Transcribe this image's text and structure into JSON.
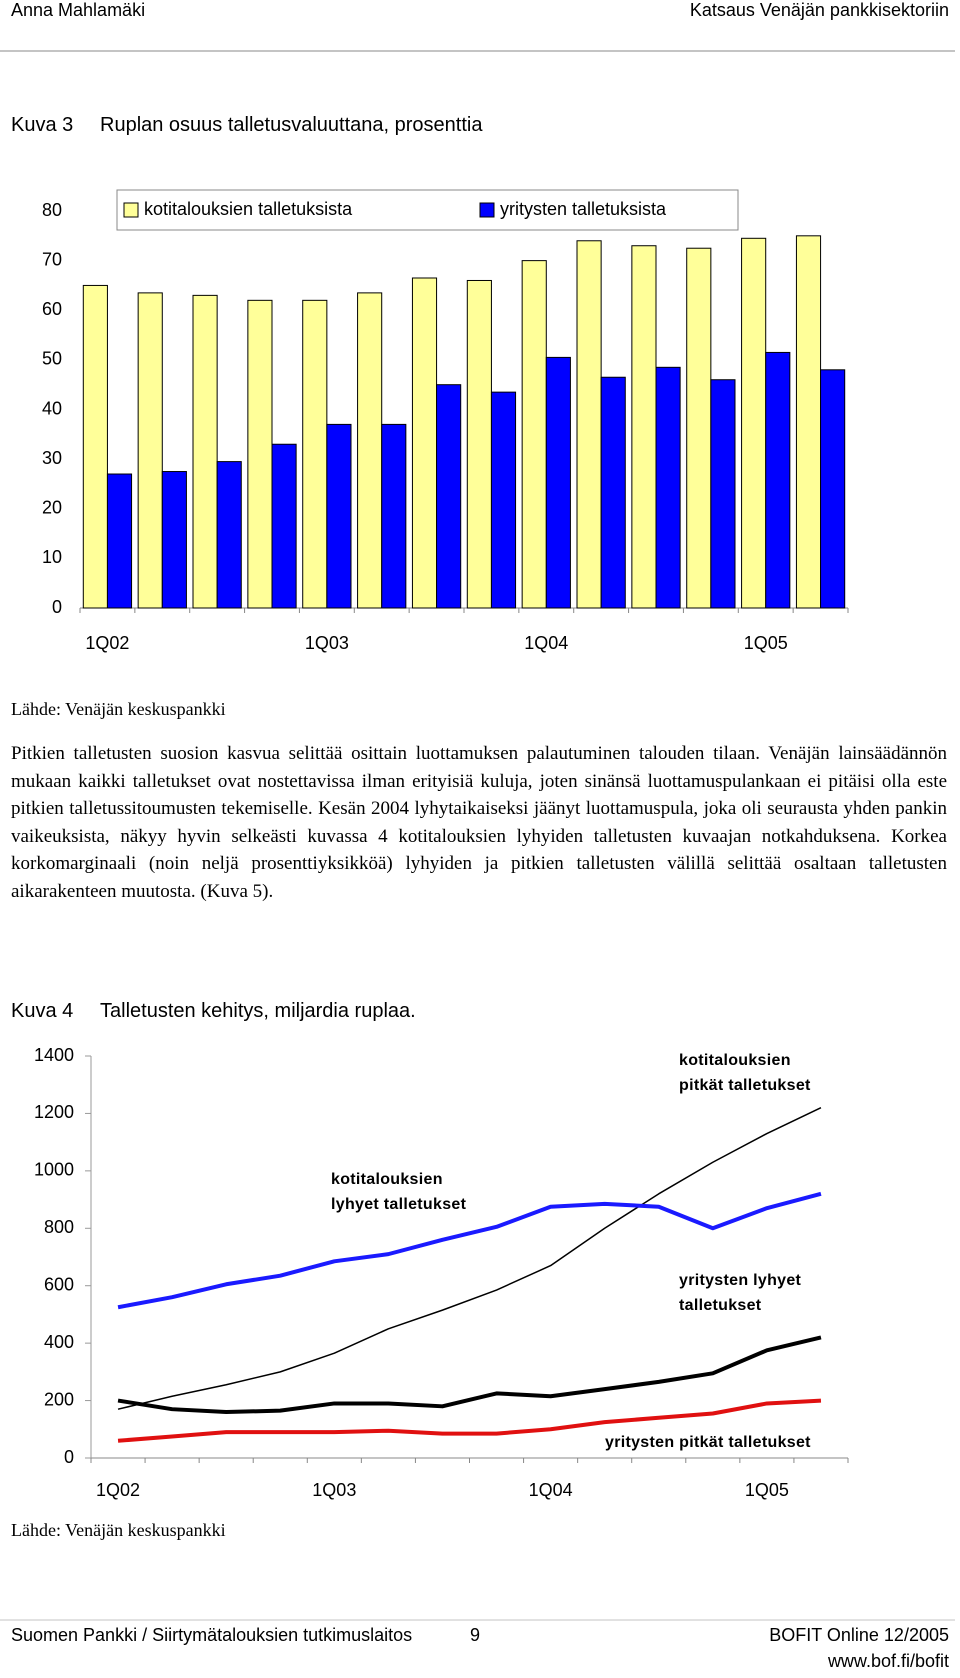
{
  "header": {
    "author": "Anna Mahlamäki",
    "title": "Katsaus Venäjän pankkisektoriin"
  },
  "figures": [
    {
      "label": "Kuva 3",
      "source": "Lähde: Venäjän keskuspankki"
    },
    {
      "label": "Kuva 4",
      "source": "Lähde: Venäjän keskuspankki"
    }
  ],
  "chart_data": [
    {
      "type": "bar",
      "title": "Ruplan osuus talletusvaluuttana, prosenttia",
      "categories": [
        "1Q02",
        null,
        null,
        null,
        "1Q03",
        null,
        null,
        null,
        "1Q04",
        null,
        null,
        null,
        "1Q05",
        null
      ],
      "series": [
        {
          "name": "kotitalouksien talletuksista",
          "color": "#ffff99",
          "values": [
            65,
            63.5,
            63,
            62,
            62,
            63.5,
            66.5,
            66,
            70,
            74,
            73,
            72.5,
            74.5,
            75
          ]
        },
        {
          "name": "yritysten talletuksista",
          "color": "#0000ff",
          "values": [
            27,
            27.5,
            29.5,
            33,
            37,
            37,
            45,
            43.5,
            50.5,
            46.5,
            48.5,
            46,
            51.5,
            48
          ]
        }
      ],
      "ylim": [
        0,
        80
      ],
      "yticks": [
        0,
        10,
        20,
        30,
        40,
        50,
        60,
        70,
        80
      ],
      "legend": "top"
    },
    {
      "type": "line",
      "title": "Talletusten kehitys, miljardia ruplaa.",
      "categories": [
        "1Q02",
        null,
        null,
        null,
        "1Q03",
        null,
        null,
        null,
        "1Q04",
        null,
        null,
        null,
        "1Q05",
        null
      ],
      "series": [
        {
          "name": "kotitalouksien pitkät talletukset",
          "color": "#000000",
          "linewidth": 1.5,
          "values": [
            170,
            215,
            255,
            300,
            365,
            450,
            515,
            585,
            670,
            800,
            920,
            1030,
            1130,
            1220
          ]
        },
        {
          "name": "kotitalouksien lyhyet talletukset",
          "color": "#1a1aff",
          "linewidth": 4,
          "values": [
            525,
            560,
            605,
            635,
            685,
            710,
            760,
            805,
            875,
            885,
            875,
            800,
            870,
            920
          ]
        },
        {
          "name": "yritysten lyhyet talletukset",
          "color": "#000000",
          "linewidth": 4,
          "values": [
            200,
            170,
            160,
            165,
            190,
            190,
            180,
            225,
            215,
            240,
            265,
            295,
            375,
            420
          ]
        },
        {
          "name": "yritysten pitkät talletukset",
          "color": "#e01010",
          "linewidth": 4,
          "values": [
            60,
            75,
            90,
            90,
            90,
            95,
            85,
            85,
            100,
            125,
            140,
            155,
            190,
            200
          ]
        }
      ],
      "ylim": [
        0,
        1400
      ],
      "yticks": [
        0,
        200,
        400,
        600,
        800,
        1000,
        1200,
        1400
      ]
    }
  ],
  "text": {
    "paragraph": "Pitkien talletusten suosion kasvua selittää osittain luottamuksen palautuminen talouden tilaan. Venäjän lainsäädännön mukaan kaikki talletukset ovat nostettavissa ilman erityisiä kuluja, joten sinänsä luottamuspulankaan ei pitäisi olla este pitkien talletussitoumusten tekemiselle. Kesän 2004 lyhytaikaiseksi jäänyt luottamuspula, joka oli seurausta yhden pankin vaikeuksista, näkyy hyvin selkeästi kuvassa 4 kotitalouksien lyhyiden talletusten kuvaajan notkahduksena. Korkea korkomarginaali (noin neljä prosenttiyksikköä) lyhyiden ja pitkien talletusten välillä selittää osaltaan talletusten aikarakenteen muutosta. (Kuva 5)."
  },
  "footer": {
    "left": "Suomen Pankki / Siirtymätalouksien tutkimuslaitos",
    "page": "9",
    "right": "BOFIT Online 12/2005",
    "url": "www.bof.fi/bofit"
  }
}
